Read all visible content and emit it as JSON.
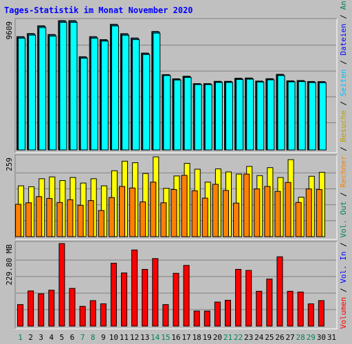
{
  "title": "Tages-Statistik im Monat November 2020",
  "colors": {
    "background": "#c0c0c0",
    "title": "#0000ff",
    "grid": "#808080",
    "hits": "#00ffff",
    "files": "#00c0ff",
    "pages": "#00ffff",
    "visits": "#ffff00",
    "sites": "#ff8000",
    "volume": "#ff0000",
    "shadow": "#000000",
    "weekend": "#00805c",
    "weekday": "#000000"
  },
  "side_labels": {
    "top": [
      {
        "text": "Anfragen",
        "color": "#00805c"
      },
      {
        "text": " / ",
        "color": "#000000"
      },
      {
        "text": "Dateien",
        "color": "#0000ff"
      },
      {
        "text": " / ",
        "color": "#000000"
      },
      {
        "text": "Seiten",
        "color": "#00c0ff"
      },
      {
        "text": " / ",
        "color": "#000000"
      },
      {
        "text": "Besuche",
        "color": "#c0a000"
      },
      {
        "text": " / ",
        "color": "#000000"
      },
      {
        "text": "Rechner",
        "color": "#ff8000"
      },
      {
        "text": " / ",
        "color": "#000000"
      },
      {
        "text": "Vol. Out",
        "color": "#00805c"
      },
      {
        "text": " / ",
        "color": "#000000"
      },
      {
        "text": "Vol. In",
        "color": "#0000ff"
      },
      {
        "text": " / ",
        "color": "#000000"
      },
      {
        "text": "Volumen",
        "color": "#ff0000"
      }
    ]
  },
  "chart_data": {
    "type": "bar",
    "title": "Tages-Statistik im Monat November 2020",
    "x": [
      "1",
      "2",
      "3",
      "4",
      "5",
      "6",
      "7",
      "8",
      "9",
      "10",
      "11",
      "12",
      "13",
      "14",
      "15",
      "16",
      "17",
      "18",
      "19",
      "20",
      "21",
      "22",
      "23",
      "24",
      "25",
      "26",
      "27",
      "28",
      "29",
      "30",
      "31"
    ],
    "weekend_days": [
      "1",
      "7",
      "8",
      "14",
      "15",
      "21",
      "22",
      "28",
      "29"
    ],
    "panels": [
      {
        "name": "requests",
        "max_label": "9609",
        "ymax": 9609,
        "series": [
          {
            "name": "Anfragen",
            "values": [
              8420,
              8650,
              9230,
              8580,
              9609,
              9609,
              6930,
              8420,
              8200,
              9340,
              8640,
              8320,
              7200,
              8800,
              5600,
              5290,
              5480,
              4930,
              4930,
              5100,
              5100,
              5330,
              5350,
              5120,
              5300,
              5620,
              5140,
              5160,
              5090,
              5080,
              null
            ]
          },
          {
            "name": "Dateien",
            "values": [
              8380,
              8610,
              9170,
              8540,
              9560,
              9560,
              6890,
              8380,
              8160,
              9290,
              8600,
              8280,
              7160,
              8760,
              5580,
              5250,
              5440,
              4900,
              4900,
              5060,
              5060,
              5290,
              5310,
              5090,
              5260,
              5580,
              5100,
              5120,
              5050,
              5040,
              null
            ]
          },
          {
            "name": "Seiten",
            "values": [
              8300,
              8530,
              9090,
              8460,
              9480,
              9480,
              6820,
              8300,
              8090,
              9210,
              8520,
              8200,
              7090,
              8680,
              5530,
              5200,
              5390,
              4860,
              4860,
              5020,
              5020,
              5240,
              5260,
              5050,
              5210,
              5530,
              5060,
              5080,
              5010,
              5000,
              null
            ]
          }
        ]
      },
      {
        "name": "visits",
        "max_label": "259",
        "ymax": 259,
        "series": [
          {
            "name": "Besuche",
            "values": [
              165,
              162,
              188,
              194,
              182,
              192,
              174,
              188,
              165,
              214,
              245,
              240,
              205,
              259,
              157,
              197,
              238,
              219,
              177,
              220,
              210,
              203,
              228,
              198,
              224,
              192,
              250,
              128,
              196,
              209,
              null
            ]
          },
          {
            "name": "Rechner",
            "values": [
              105,
              110,
              130,
              124,
              111,
              120,
              102,
              117,
              85,
              127,
              163,
              158,
              113,
              177,
              110,
              153,
              199,
              149,
              125,
              170,
              150,
              109,
              203,
              155,
              163,
              147,
              176,
              111,
              155,
              153,
              null
            ]
          }
        ]
      },
      {
        "name": "volume",
        "max_label": "229.80 MB",
        "ymax": 229.8,
        "series": [
          {
            "name": "Volumen",
            "values": [
              60,
              98,
              90,
              100,
              229.8,
              105,
              55,
              71,
              62,
              175,
              148,
              212,
              158,
              188,
              60,
              147,
              169,
              42,
              42,
              67,
              72,
              158,
              155,
              97,
              131,
              193,
              97,
              95,
              62,
              71,
              null
            ]
          }
        ]
      }
    ]
  }
}
